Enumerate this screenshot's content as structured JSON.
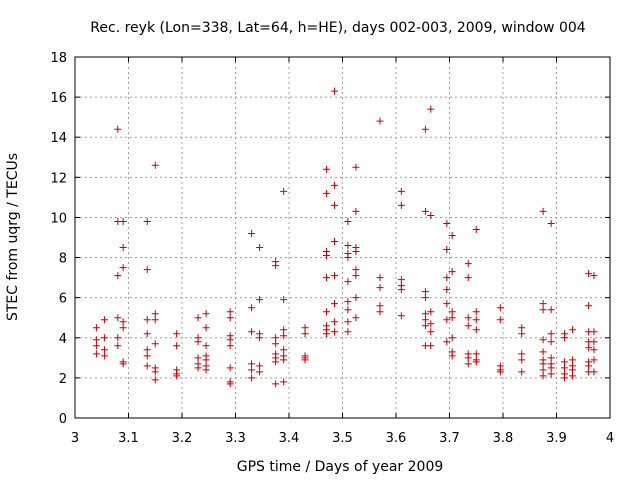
{
  "chart_data": {
    "type": "scatter",
    "title": "Rec. reyk (Lon=338, Lat=64, h=HE), days 002-003, 2009, window 004",
    "xlabel": "GPS time / Days of year 2009",
    "ylabel": "STEC from uqrg / TECUs",
    "xlim": [
      3,
      4
    ],
    "ylim": [
      0,
      18
    ],
    "xticks": [
      "3",
      "3.1",
      "3.2",
      "3.3",
      "3.4",
      "3.5",
      "3.6",
      "3.7",
      "3.8",
      "3.9",
      "4"
    ],
    "yticks": [
      "0",
      "2",
      "4",
      "6",
      "8",
      "10",
      "12",
      "14",
      "16",
      "18"
    ],
    "grid": true,
    "marker": "+",
    "color": "#cc0000",
    "points": [
      [
        3.04,
        4.5
      ],
      [
        3.04,
        3.9
      ],
      [
        3.04,
        3.6
      ],
      [
        3.04,
        3.2
      ],
      [
        3.055,
        4.9
      ],
      [
        3.055,
        4.0
      ],
      [
        3.055,
        3.4
      ],
      [
        3.055,
        3.1
      ],
      [
        3.08,
        14.4
      ],
      [
        3.08,
        9.8
      ],
      [
        3.08,
        7.1
      ],
      [
        3.08,
        5.0
      ],
      [
        3.08,
        4.0
      ],
      [
        3.08,
        3.6
      ],
      [
        3.09,
        9.8
      ],
      [
        3.09,
        8.5
      ],
      [
        3.09,
        7.5
      ],
      [
        3.09,
        4.8
      ],
      [
        3.09,
        4.5
      ],
      [
        3.09,
        2.8
      ],
      [
        3.09,
        2.7
      ],
      [
        3.135,
        9.8
      ],
      [
        3.135,
        7.4
      ],
      [
        3.135,
        4.9
      ],
      [
        3.135,
        4.2
      ],
      [
        3.135,
        3.4
      ],
      [
        3.135,
        3.1
      ],
      [
        3.135,
        2.6
      ],
      [
        3.15,
        12.6
      ],
      [
        3.15,
        5.2
      ],
      [
        3.15,
        4.9
      ],
      [
        3.15,
        3.7
      ],
      [
        3.15,
        2.5
      ],
      [
        3.15,
        2.3
      ],
      [
        3.15,
        1.9
      ],
      [
        3.19,
        4.2
      ],
      [
        3.19,
        3.6
      ],
      [
        3.19,
        2.4
      ],
      [
        3.19,
        2.2
      ],
      [
        3.19,
        2.1
      ],
      [
        3.23,
        5.0
      ],
      [
        3.23,
        4.0
      ],
      [
        3.23,
        3.8
      ],
      [
        3.23,
        3.0
      ],
      [
        3.23,
        2.7
      ],
      [
        3.23,
        2.5
      ],
      [
        3.245,
        5.2
      ],
      [
        3.245,
        4.5
      ],
      [
        3.245,
        3.6
      ],
      [
        3.245,
        3.1
      ],
      [
        3.245,
        2.9
      ],
      [
        3.245,
        2.6
      ],
      [
        3.245,
        2.4
      ],
      [
        3.29,
        5.3
      ],
      [
        3.29,
        5.0
      ],
      [
        3.29,
        4.1
      ],
      [
        3.29,
        3.9
      ],
      [
        3.29,
        3.6
      ],
      [
        3.29,
        2.5
      ],
      [
        3.29,
        1.8
      ],
      [
        3.29,
        1.7
      ],
      [
        3.33,
        9.2
      ],
      [
        3.33,
        5.5
      ],
      [
        3.33,
        4.3
      ],
      [
        3.33,
        2.7
      ],
      [
        3.33,
        2.4
      ],
      [
        3.33,
        2.0
      ],
      [
        3.345,
        8.5
      ],
      [
        3.345,
        5.9
      ],
      [
        3.345,
        4.2
      ],
      [
        3.345,
        4.0
      ],
      [
        3.345,
        2.6
      ],
      [
        3.345,
        2.3
      ],
      [
        3.375,
        7.8
      ],
      [
        3.375,
        7.6
      ],
      [
        3.375,
        4.0
      ],
      [
        3.375,
        3.7
      ],
      [
        3.375,
        3.2
      ],
      [
        3.375,
        3.0
      ],
      [
        3.375,
        2.8
      ],
      [
        3.375,
        1.7
      ],
      [
        3.39,
        11.3
      ],
      [
        3.39,
        5.9
      ],
      [
        3.39,
        4.4
      ],
      [
        3.39,
        4.1
      ],
      [
        3.39,
        3.4
      ],
      [
        3.39,
        3.1
      ],
      [
        3.39,
        2.9
      ],
      [
        3.39,
        1.8
      ],
      [
        3.43,
        4.5
      ],
      [
        3.43,
        4.2
      ],
      [
        3.43,
        3.1
      ],
      [
        3.43,
        3.0
      ],
      [
        3.43,
        2.9
      ],
      [
        3.47,
        12.4
      ],
      [
        3.47,
        11.2
      ],
      [
        3.47,
        8.3
      ],
      [
        3.47,
        8.1
      ],
      [
        3.47,
        7.0
      ],
      [
        3.47,
        5.3
      ],
      [
        3.47,
        4.6
      ],
      [
        3.47,
        4.4
      ],
      [
        3.47,
        4.2
      ],
      [
        3.485,
        16.3
      ],
      [
        3.485,
        11.6
      ],
      [
        3.485,
        10.6
      ],
      [
        3.485,
        8.8
      ],
      [
        3.485,
        7.1
      ],
      [
        3.485,
        5.7
      ],
      [
        3.485,
        4.8
      ],
      [
        3.485,
        4.3
      ],
      [
        3.51,
        9.8
      ],
      [
        3.51,
        8.6
      ],
      [
        3.51,
        8.2
      ],
      [
        3.51,
        8.0
      ],
      [
        3.51,
        6.8
      ],
      [
        3.51,
        5.8
      ],
      [
        3.51,
        5.4
      ],
      [
        3.51,
        4.8
      ],
      [
        3.51,
        4.3
      ],
      [
        3.525,
        12.5
      ],
      [
        3.525,
        10.3
      ],
      [
        3.525,
        8.5
      ],
      [
        3.525,
        8.3
      ],
      [
        3.525,
        7.4
      ],
      [
        3.525,
        7.1
      ],
      [
        3.525,
        6.0
      ],
      [
        3.525,
        5.0
      ],
      [
        3.57,
        14.8
      ],
      [
        3.57,
        7.0
      ],
      [
        3.57,
        6.5
      ],
      [
        3.57,
        5.6
      ],
      [
        3.57,
        5.3
      ],
      [
        3.61,
        11.3
      ],
      [
        3.61,
        10.6
      ],
      [
        3.61,
        6.9
      ],
      [
        3.61,
        6.6
      ],
      [
        3.61,
        6.4
      ],
      [
        3.61,
        5.1
      ],
      [
        3.655,
        14.4
      ],
      [
        3.655,
        10.3
      ],
      [
        3.655,
        6.3
      ],
      [
        3.655,
        6.0
      ],
      [
        3.655,
        5.2
      ],
      [
        3.655,
        4.9
      ],
      [
        3.655,
        4.6
      ],
      [
        3.655,
        3.6
      ],
      [
        3.665,
        15.4
      ],
      [
        3.665,
        10.1
      ],
      [
        3.665,
        5.3
      ],
      [
        3.665,
        4.7
      ],
      [
        3.665,
        4.3
      ],
      [
        3.665,
        3.6
      ],
      [
        3.695,
        9.7
      ],
      [
        3.695,
        8.4
      ],
      [
        3.695,
        7.0
      ],
      [
        3.695,
        6.4
      ],
      [
        3.695,
        5.7
      ],
      [
        3.695,
        4.9
      ],
      [
        3.695,
        3.8
      ],
      [
        3.705,
        9.1
      ],
      [
        3.705,
        7.3
      ],
      [
        3.705,
        5.3
      ],
      [
        3.705,
        5.0
      ],
      [
        3.705,
        4.0
      ],
      [
        3.705,
        3.3
      ],
      [
        3.705,
        3.1
      ],
      [
        3.735,
        7.7
      ],
      [
        3.735,
        7.0
      ],
      [
        3.735,
        5.0
      ],
      [
        3.735,
        4.6
      ],
      [
        3.735,
        3.2
      ],
      [
        3.735,
        3.0
      ],
      [
        3.735,
        2.7
      ],
      [
        3.75,
        9.4
      ],
      [
        3.75,
        5.3
      ],
      [
        3.75,
        4.9
      ],
      [
        3.75,
        4.4
      ],
      [
        3.75,
        3.2
      ],
      [
        3.75,
        2.9
      ],
      [
        3.75,
        2.8
      ],
      [
        3.795,
        5.5
      ],
      [
        3.795,
        4.9
      ],
      [
        3.795,
        2.6
      ],
      [
        3.795,
        2.4
      ],
      [
        3.795,
        2.3
      ],
      [
        3.835,
        4.5
      ],
      [
        3.835,
        4.2
      ],
      [
        3.835,
        3.2
      ],
      [
        3.835,
        2.9
      ],
      [
        3.835,
        2.3
      ],
      [
        3.875,
        10.3
      ],
      [
        3.875,
        5.7
      ],
      [
        3.875,
        5.4
      ],
      [
        3.875,
        3.9
      ],
      [
        3.875,
        3.3
      ],
      [
        3.875,
        2.9
      ],
      [
        3.875,
        2.7
      ],
      [
        3.875,
        2.4
      ],
      [
        3.875,
        2.1
      ],
      [
        3.89,
        9.7
      ],
      [
        3.89,
        5.4
      ],
      [
        3.89,
        4.2
      ],
      [
        3.89,
        3.8
      ],
      [
        3.89,
        3.0
      ],
      [
        3.89,
        2.7
      ],
      [
        3.89,
        2.5
      ],
      [
        3.89,
        2.2
      ],
      [
        3.915,
        4.2
      ],
      [
        3.915,
        4.0
      ],
      [
        3.915,
        2.8
      ],
      [
        3.915,
        2.5
      ],
      [
        3.915,
        2.2
      ],
      [
        3.915,
        2.0
      ],
      [
        3.93,
        4.4
      ],
      [
        3.93,
        2.9
      ],
      [
        3.93,
        2.6
      ],
      [
        3.93,
        2.4
      ],
      [
        3.93,
        2.1
      ],
      [
        3.96,
        7.2
      ],
      [
        3.96,
        5.6
      ],
      [
        3.96,
        4.3
      ],
      [
        3.96,
        3.8
      ],
      [
        3.96,
        3.5
      ],
      [
        3.96,
        2.8
      ],
      [
        3.96,
        2.6
      ],
      [
        3.96,
        2.3
      ],
      [
        3.97,
        7.1
      ],
      [
        3.97,
        4.3
      ],
      [
        3.97,
        3.8
      ],
      [
        3.97,
        3.4
      ],
      [
        3.97,
        2.9
      ],
      [
        3.97,
        2.3
      ]
    ]
  }
}
